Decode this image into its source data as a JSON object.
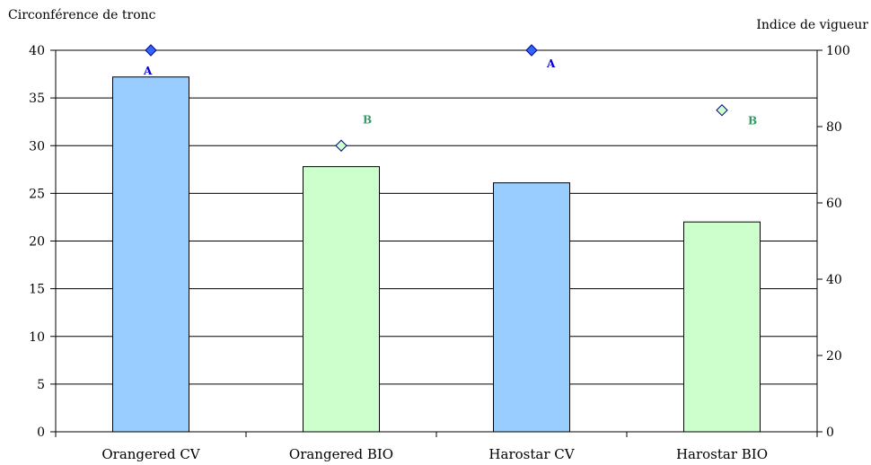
{
  "chart_data": {
    "type": "bar",
    "categories": [
      "Orangered CV",
      "Orangered BIO",
      "Harostar CV",
      "Harostar BIO"
    ],
    "series": [
      {
        "axis": "left",
        "type": "bar",
        "values": [
          37.2,
          27.8,
          26.1,
          22.0
        ],
        "colors": [
          "#99ccff",
          "#ccffcc",
          "#99ccff",
          "#ccffcc"
        ]
      },
      {
        "axis": "right",
        "type": "scatter",
        "marker": "diamond",
        "values": [
          100,
          75,
          100,
          84.3
        ],
        "colors": [
          "#3366ff",
          "#ccffcc",
          "#3366ff",
          "#ccffcc"
        ],
        "labels": [
          "A",
          "B",
          "A",
          "B"
        ],
        "label_colors": [
          "#0000cc",
          "#339966",
          "#0000cc",
          "#339966"
        ]
      }
    ],
    "ylabel_left": "Circonférence de tronc",
    "ylabel_right": "Indice de vigueur",
    "ylim_left": [
      0,
      40
    ],
    "yticks_left": [
      0,
      5,
      10,
      15,
      20,
      25,
      30,
      35,
      40
    ],
    "ylim_right": [
      0,
      100
    ],
    "yticks_right": [
      0,
      20,
      40,
      60,
      80,
      100
    ],
    "grid": true,
    "legend": "none"
  }
}
